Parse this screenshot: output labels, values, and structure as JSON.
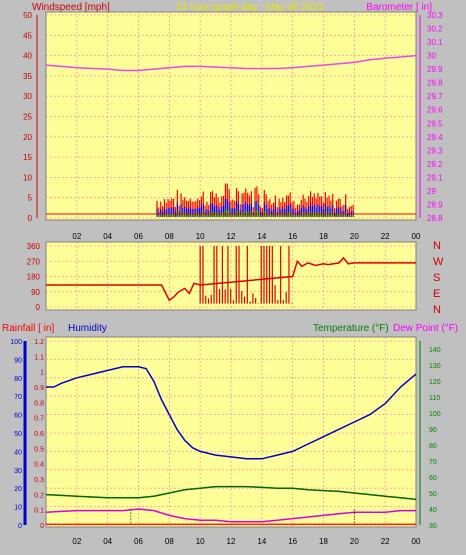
{
  "header": {
    "left_label": "Windspeed [mph]",
    "center_label": "24 hour graph day : May 08 2021",
    "right_label": "Barometer [ in]"
  },
  "colors": {
    "panel_bg": "#ffff99",
    "outer_bg": "#c0c0c0",
    "grid": "#ff9999",
    "wind_speed": "#ff0000",
    "wind_gust": "#0000ff",
    "wind_low": "#008000",
    "barometer": "#ee44ee",
    "direction": "#dd0000",
    "humidity": "#0000cc",
    "temperature": "#006400",
    "dew_point": "#dd00dd",
    "rain": "#ff0000",
    "title_yellow": "#e6e600",
    "magenta_label": "#ff00ff",
    "red_label": "#cc0000"
  },
  "chart_data": [
    {
      "type": "line",
      "name_id": "wind-barometer",
      "x_ticks": [
        "02",
        "04",
        "06",
        "08",
        "10",
        "12",
        "14",
        "16",
        "18",
        "20",
        "22",
        "00"
      ],
      "xlim": [
        0,
        24
      ],
      "left_axis": {
        "label": "Windspeed [mph]",
        "ylim": [
          0,
          50
        ],
        "ticks": [
          0,
          5,
          10,
          15,
          20,
          25,
          30,
          35,
          40,
          45,
          50
        ]
      },
      "right_axis": {
        "label": "Barometer [ in]",
        "ylim": [
          28.8,
          30.3
        ],
        "ticks": [
          "28.8",
          "28.9",
          "29",
          "29.1",
          "29.2",
          "29.3",
          "29.4",
          "29.5",
          "29.6",
          "29.7",
          "29.8",
          "29.9",
          "30",
          "30.1",
          "30.2",
          "30.3"
        ]
      },
      "series": [
        {
          "label": "Barometer",
          "axis": "right",
          "x": [
            0,
            1,
            2,
            3,
            4,
            5,
            6,
            7,
            8,
            9,
            10,
            11,
            12,
            13,
            14,
            15,
            16,
            17,
            18,
            19,
            20,
            21,
            22,
            23,
            24
          ],
          "y": [
            29.93,
            29.92,
            29.91,
            29.905,
            29.9,
            29.89,
            29.89,
            29.9,
            29.91,
            29.92,
            29.92,
            29.915,
            29.91,
            29.905,
            29.905,
            29.905,
            29.91,
            29.92,
            29.93,
            29.94,
            29.95,
            29.97,
            29.98,
            29.99,
            30.0
          ]
        }
      ]
    },
    {
      "type": "line",
      "name_id": "wind-direction",
      "xlim": [
        0,
        24
      ],
      "left_axis": {
        "ylim": [
          0,
          360
        ],
        "ticks": [
          0,
          90,
          180,
          270,
          360
        ]
      },
      "right_axis": {
        "ticks": [
          "N",
          "W",
          "S",
          "E",
          "N"
        ]
      },
      "series": [
        {
          "label": "Direction",
          "x": [
            0,
            7.5,
            8,
            8.3,
            8.6,
            9,
            9.3,
            9.6,
            10,
            16,
            16.3,
            16.6,
            17,
            17.5,
            18,
            18.3,
            19,
            19.3,
            19.6,
            20,
            24
          ],
          "y": [
            130,
            130,
            40,
            60,
            90,
            110,
            80,
            140,
            130,
            180,
            270,
            240,
            260,
            245,
            255,
            250,
            260,
            290,
            255,
            260,
            260
          ]
        }
      ]
    },
    {
      "type": "line",
      "name_id": "rain-humidity-temp",
      "xlim": [
        0,
        24
      ],
      "legend": [
        "Rainfall [ in]",
        "Humidity",
        "Temperature (°F)",
        "Dew Point (°F)"
      ],
      "rain_axis": {
        "label": "Rainfall [ in]",
        "ylim": [
          0,
          1.2
        ],
        "ticks": [
          "0",
          "0.1",
          "0.2",
          "0.3",
          "0.4",
          "0.5",
          "0.6",
          "0.7",
          "0.8",
          "0.9",
          "1",
          "1.1",
          "1.2"
        ]
      },
      "humidity_axis": {
        "label": "Humidity",
        "ylim": [
          0,
          100
        ],
        "ticks": [
          0,
          10,
          20,
          30,
          40,
          50,
          60,
          70,
          80,
          90,
          100
        ]
      },
      "temp_axis": {
        "label": "Temperature (°F)",
        "ylim": [
          30,
          145
        ],
        "ticks": [
          30,
          40,
          50,
          60,
          70,
          80,
          90,
          100,
          110,
          120,
          130,
          140
        ]
      },
      "series": [
        {
          "label": "Humidity",
          "axis": "humidity",
          "x": [
            0,
            0.5,
            1,
            2,
            3,
            4,
            5,
            6,
            6.5,
            7,
            7.5,
            8,
            8.5,
            9,
            9.5,
            10,
            11,
            12,
            13,
            14,
            15,
            16,
            17,
            18,
            19,
            20,
            21,
            22,
            23,
            24
          ],
          "y": [
            75,
            75,
            77,
            80,
            82,
            84,
            86,
            86,
            85,
            78,
            68,
            60,
            52,
            46,
            42,
            40,
            38,
            37,
            36,
            36,
            38,
            40,
            44,
            48,
            52,
            56,
            60,
            66,
            75,
            82
          ]
        },
        {
          "label": "Temperature (°F)",
          "axis": "temp",
          "x": [
            0,
            1,
            2,
            3,
            4,
            5,
            6,
            7,
            8,
            9,
            10,
            11,
            12,
            13,
            14,
            15,
            16,
            17,
            18,
            19,
            20,
            21,
            22,
            23,
            24
          ],
          "y": [
            49,
            48.5,
            48,
            47.5,
            47,
            47,
            47,
            48,
            50,
            52,
            53,
            54,
            54,
            54,
            53.5,
            53,
            53,
            52,
            51.5,
            51,
            50,
            49,
            48,
            47,
            46
          ]
        },
        {
          "label": "Dew Point (°F)",
          "axis": "temp",
          "x": [
            0,
            1,
            2,
            3,
            4,
            5,
            6,
            7,
            8,
            9,
            10,
            11,
            12,
            13,
            14,
            15,
            16,
            17,
            18,
            19,
            20,
            21,
            22,
            23,
            24
          ],
          "y": [
            38,
            38.5,
            39,
            39,
            39,
            39,
            40,
            39,
            36,
            34,
            33,
            33,
            32,
            32,
            32,
            33,
            34,
            35,
            36,
            37,
            38,
            38,
            38,
            39,
            39
          ]
        }
      ]
    }
  ]
}
